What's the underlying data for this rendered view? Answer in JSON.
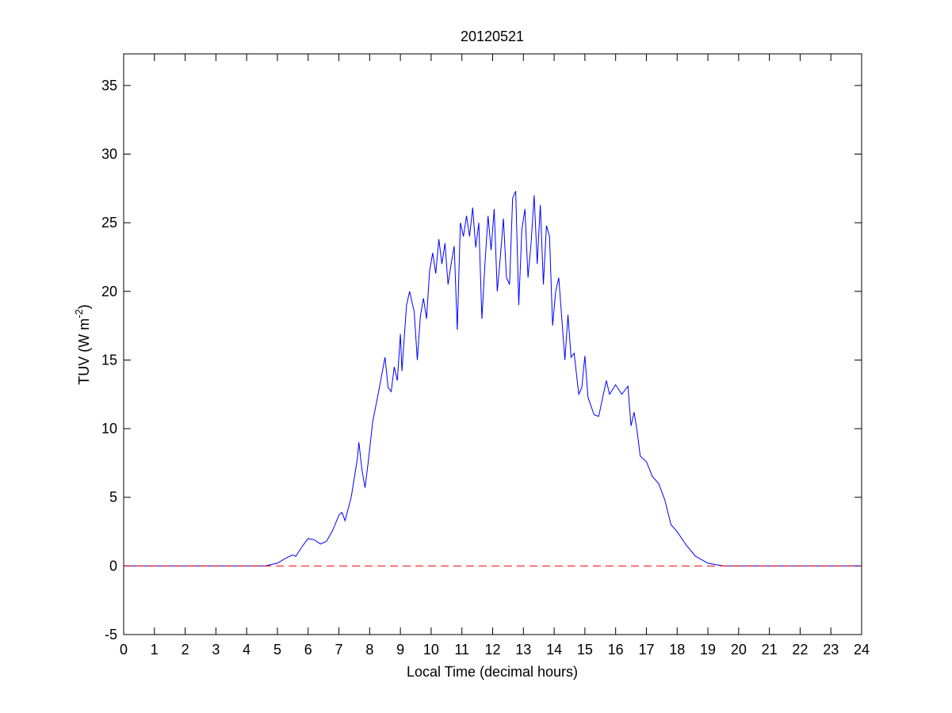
{
  "chart_data": {
    "type": "line",
    "title": "20120521",
    "x_label": "Local Time (decimal hours)",
    "y_label": {
      "text": "TUV (W m",
      "superscript": "-2",
      "suffix": ")"
    },
    "xlim": [
      0,
      24
    ],
    "ylim": [
      -5,
      37.3
    ],
    "xticks": [
      0,
      1,
      2,
      3,
      4,
      5,
      6,
      7,
      8,
      9,
      10,
      11,
      12,
      13,
      14,
      15,
      16,
      17,
      18,
      19,
      20,
      21,
      22,
      23,
      24
    ],
    "yticks": [
      -5,
      0,
      5,
      10,
      15,
      20,
      25,
      30,
      35
    ],
    "grid": false,
    "reference_line": {
      "value": 0,
      "color": "#ff0000",
      "style": "dashed"
    },
    "x": [
      0,
      4.6,
      5.0,
      5.3,
      5.5,
      5.6,
      5.8,
      6.0,
      6.2,
      6.4,
      6.6,
      6.8,
      7.0,
      7.1,
      7.2,
      7.4,
      7.6,
      7.65,
      7.75,
      7.85,
      7.95,
      8.1,
      8.3,
      8.4,
      8.5,
      8.6,
      8.7,
      8.8,
      8.9,
      9.0,
      9.05,
      9.2,
      9.3,
      9.45,
      9.55,
      9.65,
      9.75,
      9.85,
      9.95,
      10.05,
      10.15,
      10.25,
      10.35,
      10.45,
      10.55,
      10.65,
      10.75,
      10.85,
      10.95,
      11.05,
      11.15,
      11.25,
      11.35,
      11.45,
      11.55,
      11.65,
      11.75,
      11.85,
      11.95,
      12.05,
      12.15,
      12.25,
      12.35,
      12.45,
      12.55,
      12.65,
      12.75,
      12.85,
      12.95,
      13.05,
      13.15,
      13.25,
      13.35,
      13.45,
      13.55,
      13.65,
      13.75,
      13.85,
      13.95,
      14.05,
      14.15,
      14.25,
      14.35,
      14.45,
      14.55,
      14.65,
      14.8,
      14.9,
      15.0,
      15.1,
      15.3,
      15.45,
      15.6,
      15.7,
      15.8,
      16.0,
      16.2,
      16.4,
      16.5,
      16.6,
      16.7,
      16.8,
      17.0,
      17.2,
      17.4,
      17.6,
      17.8,
      18.0,
      18.3,
      18.6,
      19.0,
      19.5,
      24
    ],
    "series": [
      {
        "color": "#0000ff",
        "values": [
          0,
          0,
          0.2,
          0.6,
          0.8,
          0.7,
          1.4,
          2.0,
          1.9,
          1.6,
          1.8,
          2.6,
          3.7,
          3.9,
          3.3,
          5.0,
          7.8,
          9.0,
          7.0,
          5.7,
          7.5,
          10.5,
          12.8,
          14.0,
          15.2,
          13.0,
          12.7,
          14.5,
          13.5,
          16.9,
          14.2,
          19.0,
          20.0,
          18.5,
          15.0,
          18.2,
          19.5,
          18.0,
          21.5,
          22.8,
          21.3,
          23.8,
          22.0,
          23.5,
          20.5,
          22.0,
          23.3,
          17.2,
          25.0,
          24.0,
          25.5,
          24.0,
          26.1,
          23.2,
          25.0,
          18.0,
          22.0,
          25.5,
          23.0,
          26.0,
          20.0,
          22.5,
          25.3,
          21.0,
          20.5,
          26.8,
          27.3,
          19.0,
          24.5,
          26.0,
          21.0,
          23.5,
          27.0,
          22.0,
          26.3,
          20.5,
          24.8,
          24.0,
          17.5,
          20.0,
          21.0,
          18.0,
          15.0,
          18.3,
          15.2,
          15.5,
          12.5,
          13.0,
          15.3,
          12.3,
          11.0,
          10.9,
          12.5,
          13.5,
          12.5,
          13.2,
          12.5,
          13.1,
          10.2,
          11.2,
          9.8,
          8.0,
          7.6,
          6.5,
          6.0,
          4.8,
          3.0,
          2.5,
          1.5,
          0.7,
          0.2,
          0.0,
          0
        ]
      }
    ]
  }
}
